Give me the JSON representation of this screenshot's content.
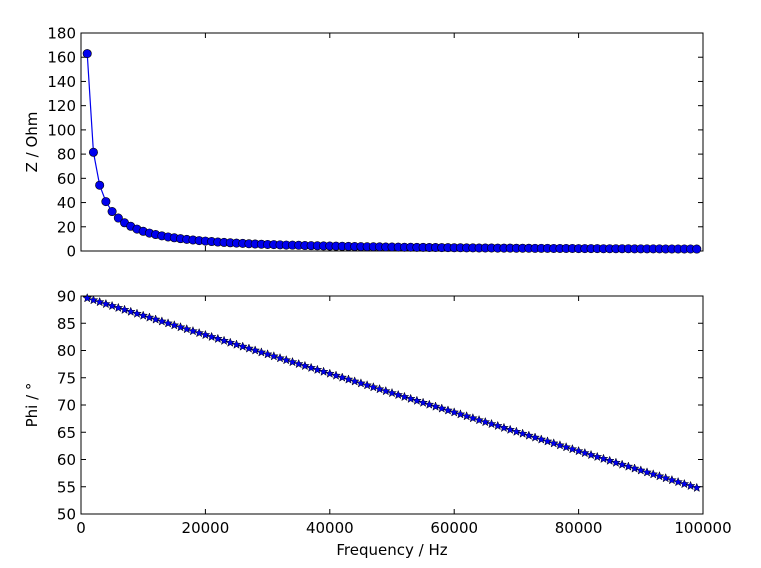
{
  "chart_data": [
    {
      "type": "line",
      "ylabel": "Z / Ohm",
      "xlim": [
        0,
        100000
      ],
      "ylim": [
        0,
        180
      ],
      "xticks": [
        0,
        20000,
        40000,
        60000,
        80000,
        100000
      ],
      "yticks": [
        0,
        20,
        40,
        60,
        80,
        100,
        120,
        140,
        160,
        180
      ],
      "ytick_labels": [
        "0",
        "20",
        "40",
        "60",
        "80",
        "100",
        "120",
        "140",
        "160",
        "180"
      ],
      "marker": "circle",
      "color": "#0000ee",
      "series": [
        {
          "x_start": 1000,
          "x_step": 1000,
          "x_end": 99000,
          "values_note_omitted": null,
          "values": [
            163.0,
            81.5,
            54.3,
            40.8,
            32.6,
            27.2,
            23.3,
            20.4,
            18.1,
            16.3,
            14.8,
            13.6,
            12.5,
            11.6,
            10.9,
            10.2,
            9.6,
            9.1,
            8.6,
            8.2,
            7.8,
            7.4,
            7.1,
            6.8,
            6.5,
            6.3,
            6.0,
            5.8,
            5.6,
            5.4,
            5.3,
            5.1,
            4.9,
            4.8,
            4.7,
            4.5,
            4.4,
            4.3,
            4.2,
            4.1,
            4.0,
            3.9,
            3.8,
            3.7,
            3.6,
            3.5,
            3.5,
            3.4,
            3.3,
            3.3,
            3.2,
            3.1,
            3.1,
            3.0,
            3.0,
            2.9,
            2.9,
            2.8,
            2.8,
            2.7,
            2.7,
            2.6,
            2.6,
            2.5,
            2.5,
            2.5,
            2.4,
            2.4,
            2.4,
            2.3,
            2.3,
            2.3,
            2.2,
            2.2,
            2.2,
            2.1,
            2.1,
            2.1,
            2.1,
            2.0,
            2.0,
            2.0,
            2.0,
            1.9,
            1.9,
            1.9,
            1.9,
            1.9,
            1.8,
            1.8,
            1.8,
            1.8,
            1.8,
            1.7,
            1.7,
            1.7,
            1.7,
            1.7,
            1.6
          ]
        }
      ]
    },
    {
      "type": "line",
      "xlabel": "Frequency / Hz",
      "ylabel": "Phi / °",
      "xlim": [
        0,
        100000
      ],
      "ylim": [
        50,
        90
      ],
      "xticks": [
        0,
        20000,
        40000,
        60000,
        80000,
        100000
      ],
      "xtick_labels": [
        "0",
        "20000",
        "40000",
        "60000",
        "80000",
        "100000"
      ],
      "yticks": [
        50,
        55,
        60,
        65,
        70,
        75,
        80,
        85,
        90
      ],
      "ytick_labels": [
        "50",
        "55",
        "60",
        "65",
        "70",
        "75",
        "80",
        "85",
        "90"
      ],
      "marker": "star",
      "color": "#0000ee",
      "series": [
        {
          "x_start": 1000,
          "x_step": 1000,
          "x_end": 99000,
          "y_start": 89.6,
          "y_end": 54.8
        }
      ]
    }
  ]
}
